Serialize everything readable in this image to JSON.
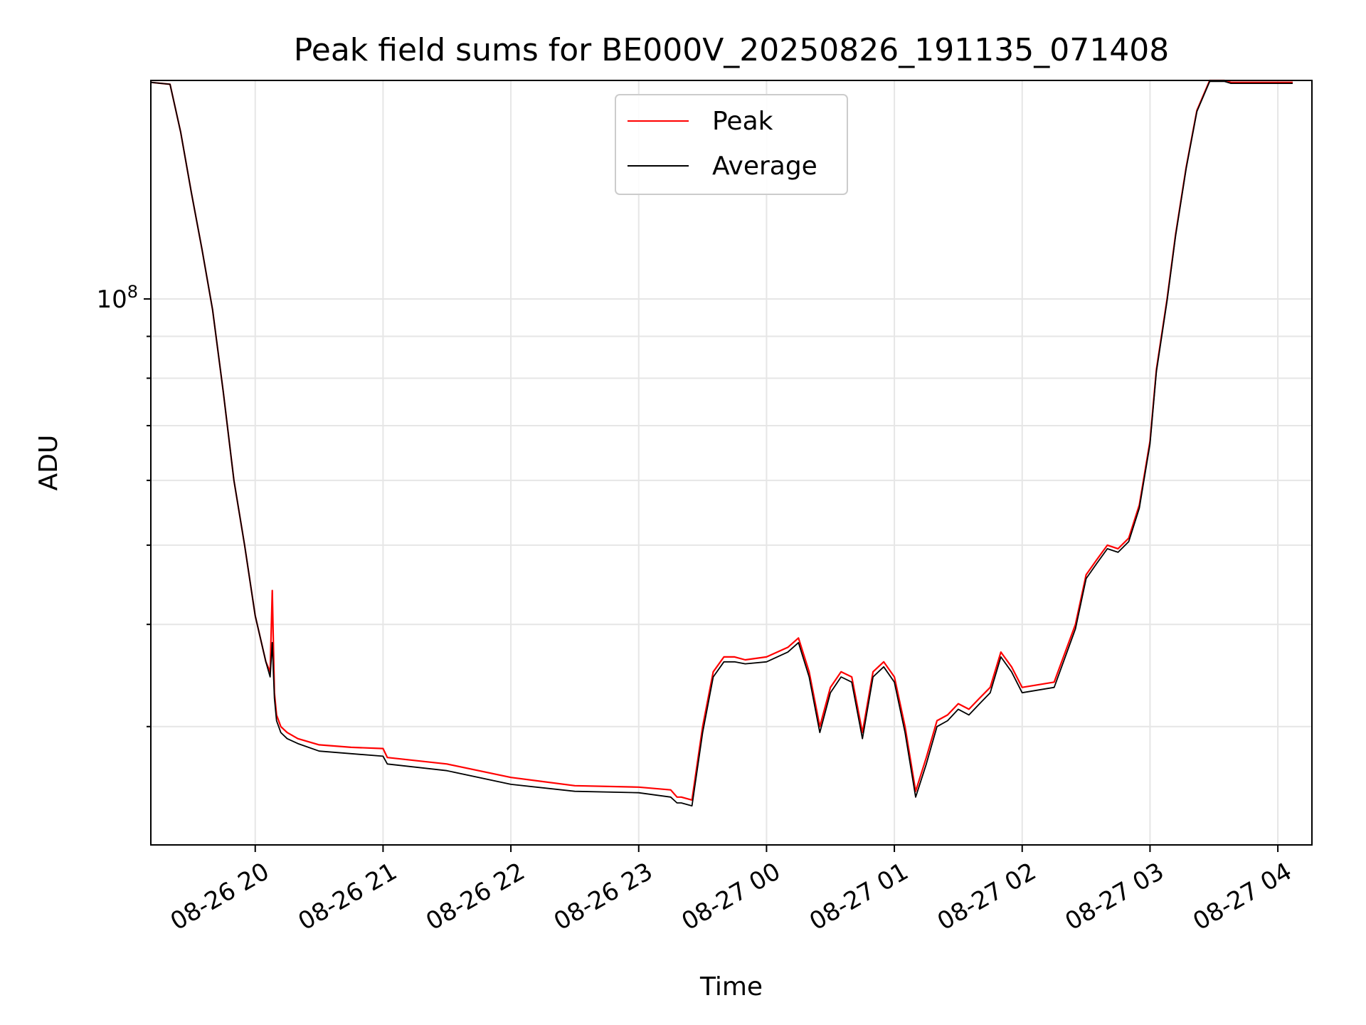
{
  "chart_data": {
    "type": "line",
    "title": "Peak field sums for BE000V_20250826_191135_071408",
    "xlabel": "Time",
    "ylabel": "ADU",
    "y_scale": "log",
    "y_tick_label": "10^8",
    "ylim": [
      21500000,
      185000000
    ],
    "xlim": [
      "2025-08-26 19:11",
      "2025-08-27 04:16"
    ],
    "grid": true,
    "legend_position": "top-center",
    "x_tick_labels": [
      "08-26 20",
      "08-26 21",
      "08-26 22",
      "08-26 23",
      "08-27 00",
      "08-27 01",
      "08-27 02",
      "08-27 03",
      "08-27 04"
    ],
    "x_ticks": [
      "2025-08-26 20:00",
      "2025-08-26 21:00",
      "2025-08-26 22:00",
      "2025-08-26 23:00",
      "2025-08-27 00:00",
      "2025-08-27 01:00",
      "2025-08-27 02:00",
      "2025-08-27 03:00",
      "2025-08-27 04:00"
    ],
    "series": [
      {
        "name": "Peak",
        "color": "#ff0000",
        "x": [
          "2025-08-26 19:11",
          "2025-08-26 19:20",
          "2025-08-26 19:25",
          "2025-08-26 19:30",
          "2025-08-26 19:35",
          "2025-08-26 19:40",
          "2025-08-26 19:45",
          "2025-08-26 19:50",
          "2025-08-26 19:55",
          "2025-08-26 20:00",
          "2025-08-26 20:05",
          "2025-08-26 20:07",
          "2025-08-26 20:08",
          "2025-08-26 20:09",
          "2025-08-26 20:10",
          "2025-08-26 20:12",
          "2025-08-26 20:15",
          "2025-08-26 20:20",
          "2025-08-26 20:30",
          "2025-08-26 20:45",
          "2025-08-26 21:00",
          "2025-08-26 21:02",
          "2025-08-26 21:30",
          "2025-08-26 22:00",
          "2025-08-26 22:30",
          "2025-08-26 23:00",
          "2025-08-26 23:15",
          "2025-08-26 23:18",
          "2025-08-26 23:20",
          "2025-08-26 23:25",
          "2025-08-26 23:30",
          "2025-08-26 23:35",
          "2025-08-26 23:40",
          "2025-08-26 23:45",
          "2025-08-26 23:50",
          "2025-08-27 00:00",
          "2025-08-27 00:10",
          "2025-08-27 00:15",
          "2025-08-27 00:20",
          "2025-08-27 00:25",
          "2025-08-27 00:30",
          "2025-08-27 00:35",
          "2025-08-27 00:40",
          "2025-08-27 00:45",
          "2025-08-27 00:50",
          "2025-08-27 00:55",
          "2025-08-27 01:00",
          "2025-08-27 01:05",
          "2025-08-27 01:10",
          "2025-08-27 01:15",
          "2025-08-27 01:20",
          "2025-08-27 01:25",
          "2025-08-27 01:30",
          "2025-08-27 01:35",
          "2025-08-27 01:40",
          "2025-08-27 01:45",
          "2025-08-27 01:50",
          "2025-08-27 01:55",
          "2025-08-27 02:00",
          "2025-08-27 02:15",
          "2025-08-27 02:25",
          "2025-08-27 02:30",
          "2025-08-27 02:35",
          "2025-08-27 02:40",
          "2025-08-27 02:45",
          "2025-08-27 02:50",
          "2025-08-27 02:55",
          "2025-08-27 03:00",
          "2025-08-27 03:03",
          "2025-08-27 03:08",
          "2025-08-27 03:12",
          "2025-08-27 03:17",
          "2025-08-27 03:22",
          "2025-08-27 03:28",
          "2025-08-27 03:35",
          "2025-08-27 03:38",
          "2025-08-27 03:42",
          "2025-08-27 03:47",
          "2025-08-27 03:52",
          "2025-08-27 03:56",
          "2025-08-27 04:00",
          "2025-08-27 04:02",
          "2025-08-27 04:05",
          "2025-08-27 04:07"
        ],
        "values": [
          184000000,
          183000000,
          160000000,
          135000000,
          115000000,
          97000000,
          77000000,
          60000000,
          50000000,
          41000000,
          36000000,
          35000000,
          44000000,
          33000000,
          31000000,
          30000000,
          29500000,
          29000000,
          28500000,
          28300000,
          28200000,
          27500000,
          27000000,
          26000000,
          25400000,
          25300000,
          25100000,
          24600000,
          24600000,
          24400000,
          30000000,
          35000000,
          36500000,
          36500000,
          36200000,
          36500000,
          37500000,
          38500000,
          35000000,
          30000000,
          33500000,
          35000000,
          34500000,
          29500000,
          35000000,
          36000000,
          34500000,
          30000000,
          25000000,
          27500000,
          30500000,
          31000000,
          32000000,
          31500000,
          32500000,
          33500000,
          37000000,
          35500000,
          33500000,
          34000000,
          40000000,
          46000000,
          48000000,
          50000000,
          49500000,
          51000000,
          56000000,
          67000000,
          82000000,
          100000000,
          120000000,
          145000000,
          170000000,
          185000000,
          185000000,
          184000000,
          184000000,
          184000000,
          184000000,
          184000000,
          184000000,
          184000000,
          184000000,
          184000000
        ]
      },
      {
        "name": "Average",
        "color": "#000000",
        "x": [
          "2025-08-26 19:11",
          "2025-08-26 19:20",
          "2025-08-26 19:25",
          "2025-08-26 19:30",
          "2025-08-26 19:35",
          "2025-08-26 19:40",
          "2025-08-26 19:45",
          "2025-08-26 19:50",
          "2025-08-26 19:55",
          "2025-08-26 20:00",
          "2025-08-26 20:05",
          "2025-08-26 20:07",
          "2025-08-26 20:08",
          "2025-08-26 20:09",
          "2025-08-26 20:10",
          "2025-08-26 20:12",
          "2025-08-26 20:15",
          "2025-08-26 20:20",
          "2025-08-26 20:30",
          "2025-08-26 20:45",
          "2025-08-26 21:00",
          "2025-08-26 21:02",
          "2025-08-26 21:30",
          "2025-08-26 22:00",
          "2025-08-26 22:30",
          "2025-08-26 23:00",
          "2025-08-26 23:15",
          "2025-08-26 23:18",
          "2025-08-26 23:20",
          "2025-08-26 23:25",
          "2025-08-26 23:30",
          "2025-08-26 23:35",
          "2025-08-26 23:40",
          "2025-08-26 23:45",
          "2025-08-26 23:50",
          "2025-08-27 00:00",
          "2025-08-27 00:10",
          "2025-08-27 00:15",
          "2025-08-27 00:20",
          "2025-08-27 00:25",
          "2025-08-27 00:30",
          "2025-08-27 00:35",
          "2025-08-27 00:40",
          "2025-08-27 00:45",
          "2025-08-27 00:50",
          "2025-08-27 00:55",
          "2025-08-27 01:00",
          "2025-08-27 01:05",
          "2025-08-27 01:10",
          "2025-08-27 01:15",
          "2025-08-27 01:20",
          "2025-08-27 01:25",
          "2025-08-27 01:30",
          "2025-08-27 01:35",
          "2025-08-27 01:40",
          "2025-08-27 01:45",
          "2025-08-27 01:50",
          "2025-08-27 01:55",
          "2025-08-27 02:00",
          "2025-08-27 02:15",
          "2025-08-27 02:25",
          "2025-08-27 02:30",
          "2025-08-27 02:35",
          "2025-08-27 02:40",
          "2025-08-27 02:45",
          "2025-08-27 02:50",
          "2025-08-27 02:55",
          "2025-08-27 03:00",
          "2025-08-27 03:03",
          "2025-08-27 03:08",
          "2025-08-27 03:12",
          "2025-08-27 03:17",
          "2025-08-27 03:22",
          "2025-08-27 03:28",
          "2025-08-27 03:35",
          "2025-08-27 03:38",
          "2025-08-27 03:42",
          "2025-08-27 03:47",
          "2025-08-27 03:52",
          "2025-08-27 03:56",
          "2025-08-27 04:00",
          "2025-08-27 04:02",
          "2025-08-27 04:05",
          "2025-08-27 04:07"
        ],
        "values": [
          184000000,
          183000000,
          160000000,
          135000000,
          115000000,
          97000000,
          77000000,
          60000000,
          50000000,
          41000000,
          36000000,
          34500000,
          38000000,
          32500000,
          30500000,
          29500000,
          29000000,
          28600000,
          28000000,
          27800000,
          27600000,
          27000000,
          26500000,
          25500000,
          25000000,
          24900000,
          24600000,
          24200000,
          24200000,
          24000000,
          29500000,
          34500000,
          36000000,
          36000000,
          35800000,
          36000000,
          37000000,
          38000000,
          34500000,
          29500000,
          33000000,
          34500000,
          34000000,
          29000000,
          34500000,
          35500000,
          34000000,
          29500000,
          24600000,
          27000000,
          30000000,
          30500000,
          31500000,
          31000000,
          32000000,
          33000000,
          36500000,
          35000000,
          33000000,
          33500000,
          39500000,
          45500000,
          47500000,
          49500000,
          49000000,
          50500000,
          55500000,
          66500000,
          81500000,
          99500000,
          119500000,
          144500000,
          169500000,
          184500000,
          184500000,
          183500000,
          183500000,
          183500000,
          183500000,
          183500000,
          183500000,
          183500000,
          183500000,
          183500000
        ]
      }
    ]
  }
}
